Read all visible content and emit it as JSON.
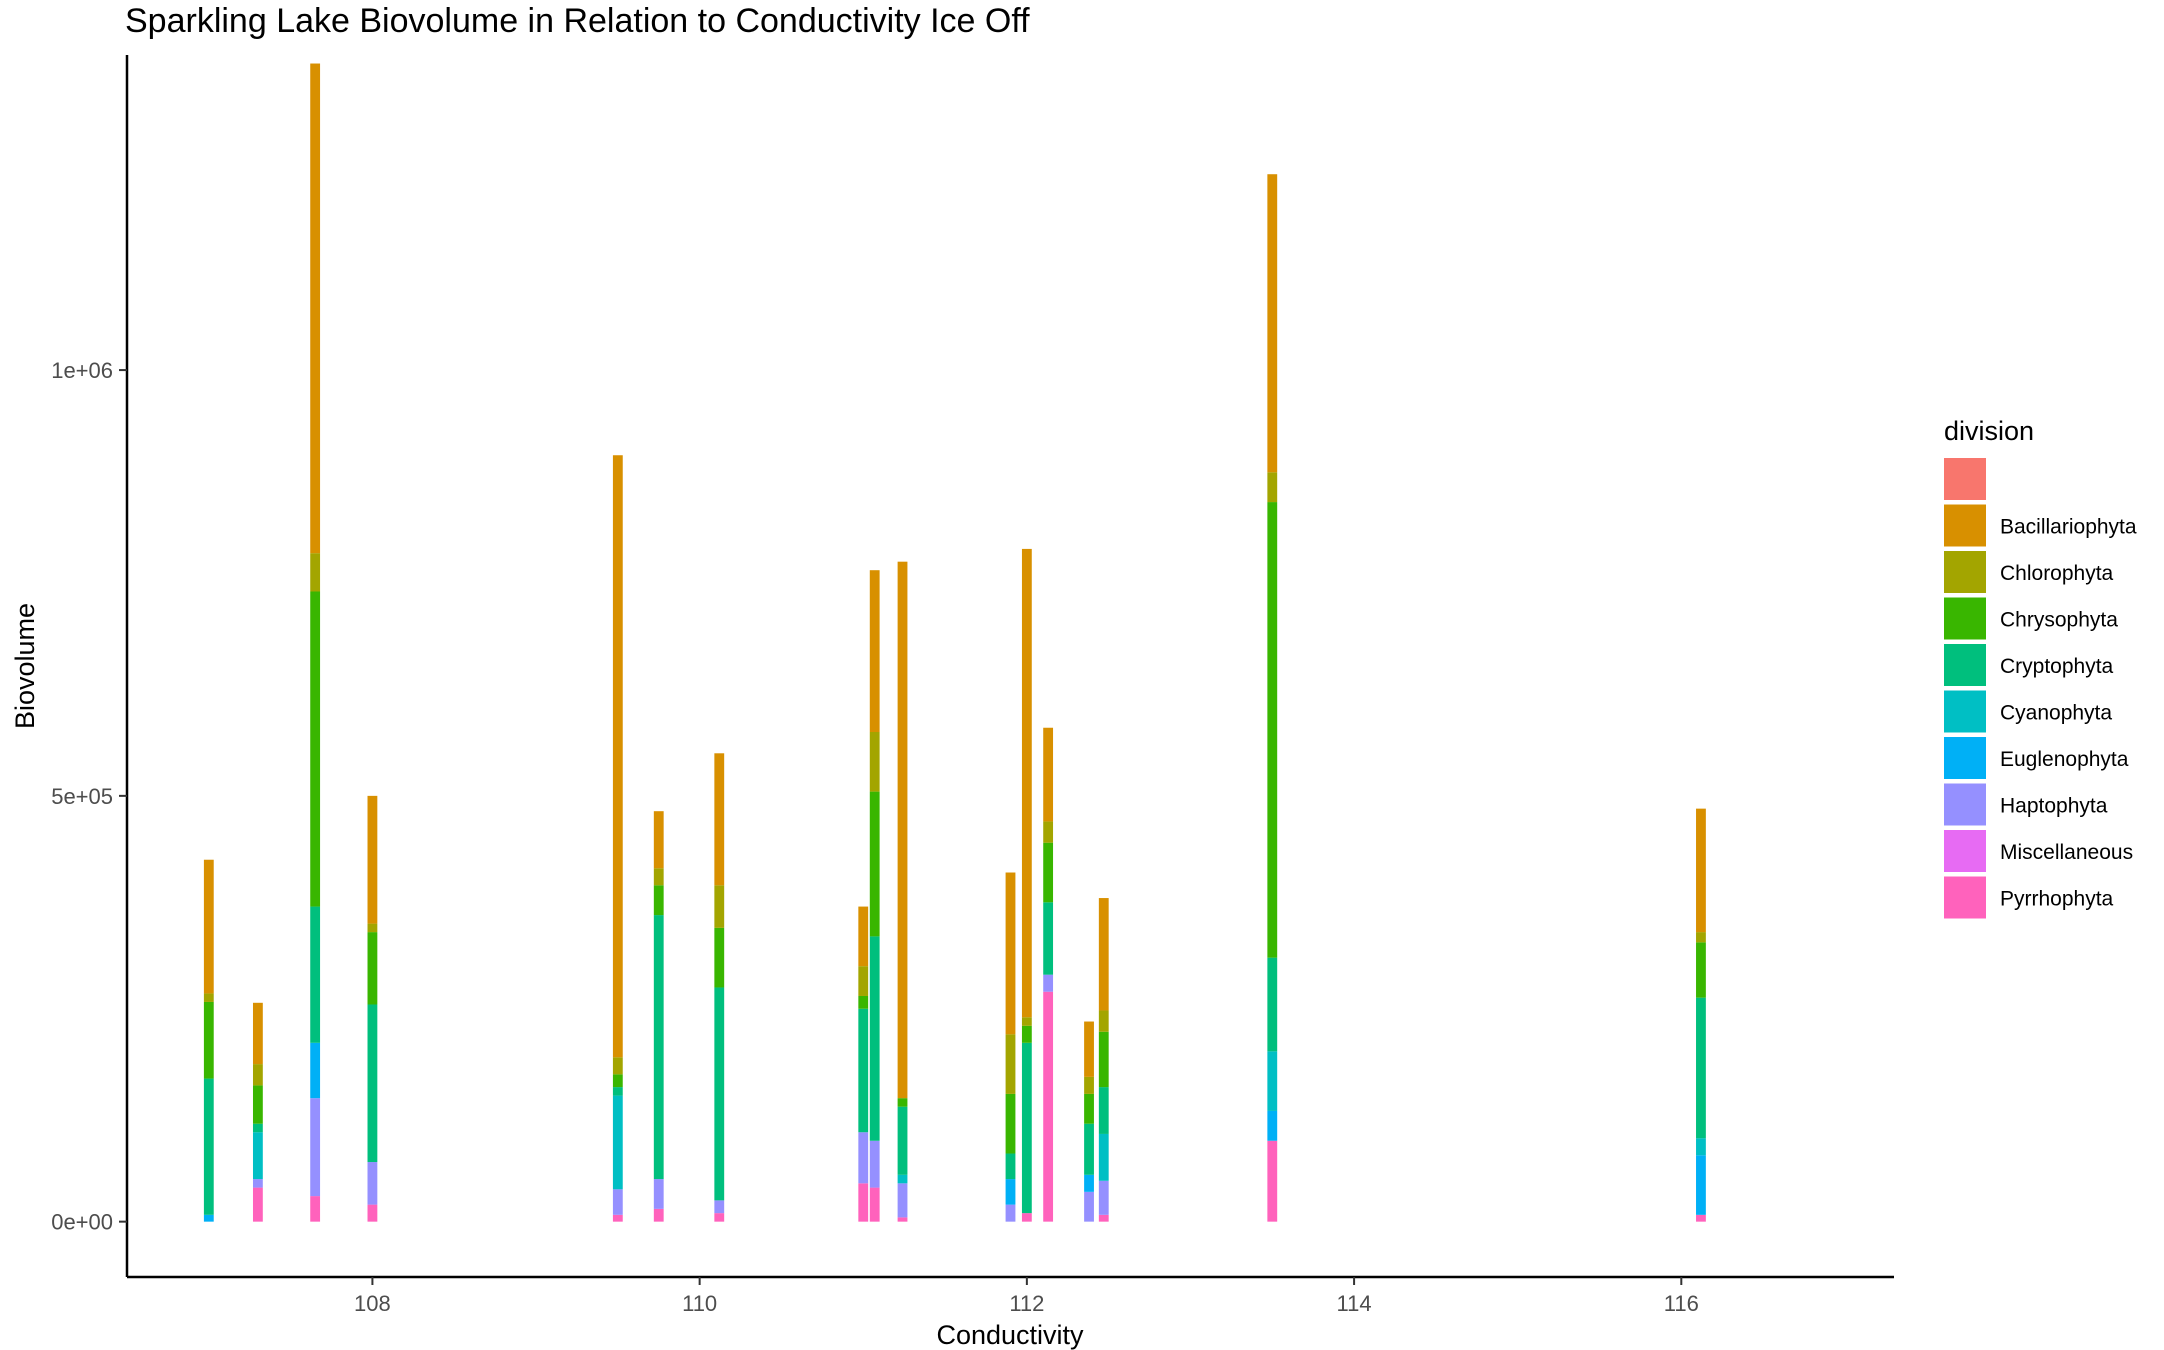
{
  "chart_data": {
    "type": "bar",
    "title": "Sparkling Lake Biovolume in Relation to Conductivity Ice Off",
    "xlabel": "Conductivity",
    "ylabel": "Biovolume",
    "xlim": [
      106.5,
      117.3
    ],
    "ylim": [
      -65000,
      1370000
    ],
    "x_ticks": [
      108,
      110,
      112,
      114,
      116
    ],
    "x_tick_labels": [
      "108",
      "110",
      "112",
      "114",
      "116"
    ],
    "y_ticks": [
      0,
      500000,
      1000000
    ],
    "y_tick_labels": [
      "0e+00",
      "5e+05",
      "1e+06"
    ],
    "bar_width": 0.06,
    "grid": false,
    "legend": {
      "title": "division",
      "position": "right",
      "entries": [
        {
          "key": "blank",
          "label": "",
          "color": "#F8766D"
        },
        {
          "key": "Bacillariophyta",
          "label": "Bacillariophyta",
          "color": "#D89000"
        },
        {
          "key": "Chlorophyta",
          "label": "Chlorophyta",
          "color": "#A3A500"
        },
        {
          "key": "Chrysophyta",
          "label": "Chrysophyta",
          "color": "#39B600"
        },
        {
          "key": "Cryptophyta",
          "label": "Cryptophyta",
          "color": "#00BF7D"
        },
        {
          "key": "Cyanophyta",
          "label": "Cyanophyta",
          "color": "#00BFC4"
        },
        {
          "key": "Euglenophyta",
          "label": "Euglenophyta",
          "color": "#00B0F6"
        },
        {
          "key": "Haptophyta",
          "label": "Haptophyta",
          "color": "#9590FF"
        },
        {
          "key": "Miscellaneous",
          "label": "Miscellaneous",
          "color": "#E76BF3"
        },
        {
          "key": "Pyrrhophyta",
          "label": "Pyrrhophyta",
          "color": "#FF62BC"
        }
      ]
    },
    "bars": [
      {
        "x": 107.0,
        "segments": {
          "Euglenophyta": 8000,
          "Cryptophyta": 160000,
          "Chrysophyta": 90000,
          "Chlorophyta": 10000,
          "Bacillariophyta": 157000
        }
      },
      {
        "x": 107.3,
        "segments": {
          "Pyrrhophyta": 40000,
          "Haptophyta": 10000,
          "Cyanophyta": 55000,
          "Cryptophyta": 10000,
          "Chrysophyta": 45000,
          "Chlorophyta": 25000,
          "Bacillariophyta": 72000
        }
      },
      {
        "x": 107.65,
        "segments": {
          "Pyrrhophyta": 30000,
          "Haptophyta": 115000,
          "Euglenophyta": 65000,
          "Cryptophyta": 160000,
          "Chrysophyta": 370000,
          "Chlorophyta": 45000,
          "Bacillariophyta": 575000
        }
      },
      {
        "x": 108.0,
        "segments": {
          "Pyrrhophyta": 20000,
          "Haptophyta": 50000,
          "Cryptophyta": 185000,
          "Chrysophyta": 85000,
          "Chlorophyta": 10000,
          "Bacillariophyta": 150000
        }
      },
      {
        "x": 109.5,
        "segments": {
          "Pyrrhophyta": 8000,
          "Haptophyta": 30000,
          "Cyanophyta": 110000,
          "Cryptophyta": 10000,
          "Chrysophyta": 15000,
          "Chlorophyta": 20000,
          "Bacillariophyta": 707000
        }
      },
      {
        "x": 109.75,
        "segments": {
          "Pyrrhophyta": 15000,
          "Haptophyta": 35000,
          "Cryptophyta": 310000,
          "Chrysophyta": 35000,
          "Chlorophyta": 20000,
          "Bacillariophyta": 67000
        }
      },
      {
        "x": 110.12,
        "segments": {
          "Pyrrhophyta": 10000,
          "Haptophyta": 15000,
          "Cryptophyta": 250000,
          "Chrysophyta": 70000,
          "Chlorophyta": 50000,
          "Bacillariophyta": 155000
        }
      },
      {
        "x": 111.0,
        "segments": {
          "Pyrrhophyta": 45000,
          "Haptophyta": 60000,
          "Cryptophyta": 145000,
          "Chrysophyta": 15000,
          "Chlorophyta": 35000,
          "Bacillariophyta": 70000
        }
      },
      {
        "x": 111.07,
        "segments": {
          "Pyrrhophyta": 40000,
          "Haptophyta": 55000,
          "Cryptophyta": 240000,
          "Chrysophyta": 170000,
          "Chlorophyta": 70000,
          "Bacillariophyta": 190000
        }
      },
      {
        "x": 111.24,
        "segments": {
          "Haptophyta": 40000,
          "Cyanophyta": 10000,
          "Cryptophyta": 80000,
          "Chrysophyta": 10000,
          "Bacillariophyta": 630000,
          "Pyrrhophyta": 5000
        }
      },
      {
        "x": 111.9,
        "segments": {
          "Haptophyta": 20000,
          "Euglenophyta": 30000,
          "Cryptophyta": 30000,
          "Chrysophyta": 70000,
          "Chlorophyta": 70000,
          "Bacillariophyta": 190000
        }
      },
      {
        "x": 112.0,
        "segments": {
          "Pyrrhophyta": 10000,
          "Cryptophyta": 200000,
          "Chrysophyta": 20000,
          "Chlorophyta": 10000,
          "Bacillariophyta": 550000
        }
      },
      {
        "x": 112.13,
        "segments": {
          "Pyrrhophyta": 270000,
          "Haptophyta": 20000,
          "Cryptophyta": 85000,
          "Chrysophyta": 70000,
          "Chlorophyta": 25000,
          "Bacillariophyta": 110000
        }
      },
      {
        "x": 112.38,
        "segments": {
          "Haptophyta": 35000,
          "Euglenophyta": 20000,
          "Cryptophyta": 60000,
          "Chrysophyta": 35000,
          "Chlorophyta": 20000,
          "Bacillariophyta": 65000
        }
      },
      {
        "x": 112.47,
        "segments": {
          "Pyrrhophyta": 8000,
          "Haptophyta": 40000,
          "Cyanophyta": 55000,
          "Cryptophyta": 55000,
          "Chrysophyta": 65000,
          "Chlorophyta": 25000,
          "Bacillariophyta": 132000
        }
      },
      {
        "x": 113.5,
        "segments": {
          "Pyrrhophyta": 95000,
          "Euglenophyta": 35000,
          "Cyanophyta": 70000,
          "Cryptophyta": 110000,
          "Chrysophyta": 535000,
          "Chlorophyta": 35000,
          "Bacillariophyta": 350000
        }
      },
      {
        "x": 116.12,
        "segments": {
          "Pyrrhophyta": 8000,
          "Euglenophyta": 70000,
          "Cyanophyta": 20000,
          "Cryptophyta": 165000,
          "Chrysophyta": 65000,
          "Chlorophyta": 12000,
          "Bacillariophyta": 145000
        }
      }
    ]
  }
}
